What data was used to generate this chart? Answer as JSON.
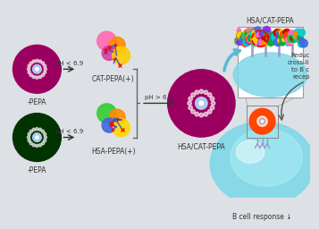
{
  "bg_color": "#e8e8e8",
  "labels": {
    "cat_pepa_label": "-PEPA",
    "hsa_label": "-PEPA",
    "cat_pepa": "CAT-PEPA(+)",
    "hsa_pepa_plus": "HSA-PEPA(+)",
    "hsa_cat_pepa": "HSA/CAT-PEPA",
    "hsa_cat_pepa2": "HSA/CAT-PEPA",
    "ph_low1": "pH < 6.9",
    "ph_low2": "pH < 6.9",
    "ph_high": "pH > 6.9",
    "b_cell": "B cell response ↓",
    "redu1": "Reduc",
    "redu2": "cross-li",
    "redu3": "to B c",
    "redu4": "recep"
  },
  "colors": {
    "background": "#e0e4e8",
    "arrow_color": "#555555",
    "cyan_cell": "#7fd8e8",
    "bracket_color": "#888888",
    "blue_arrow": "#5bb8d4"
  }
}
